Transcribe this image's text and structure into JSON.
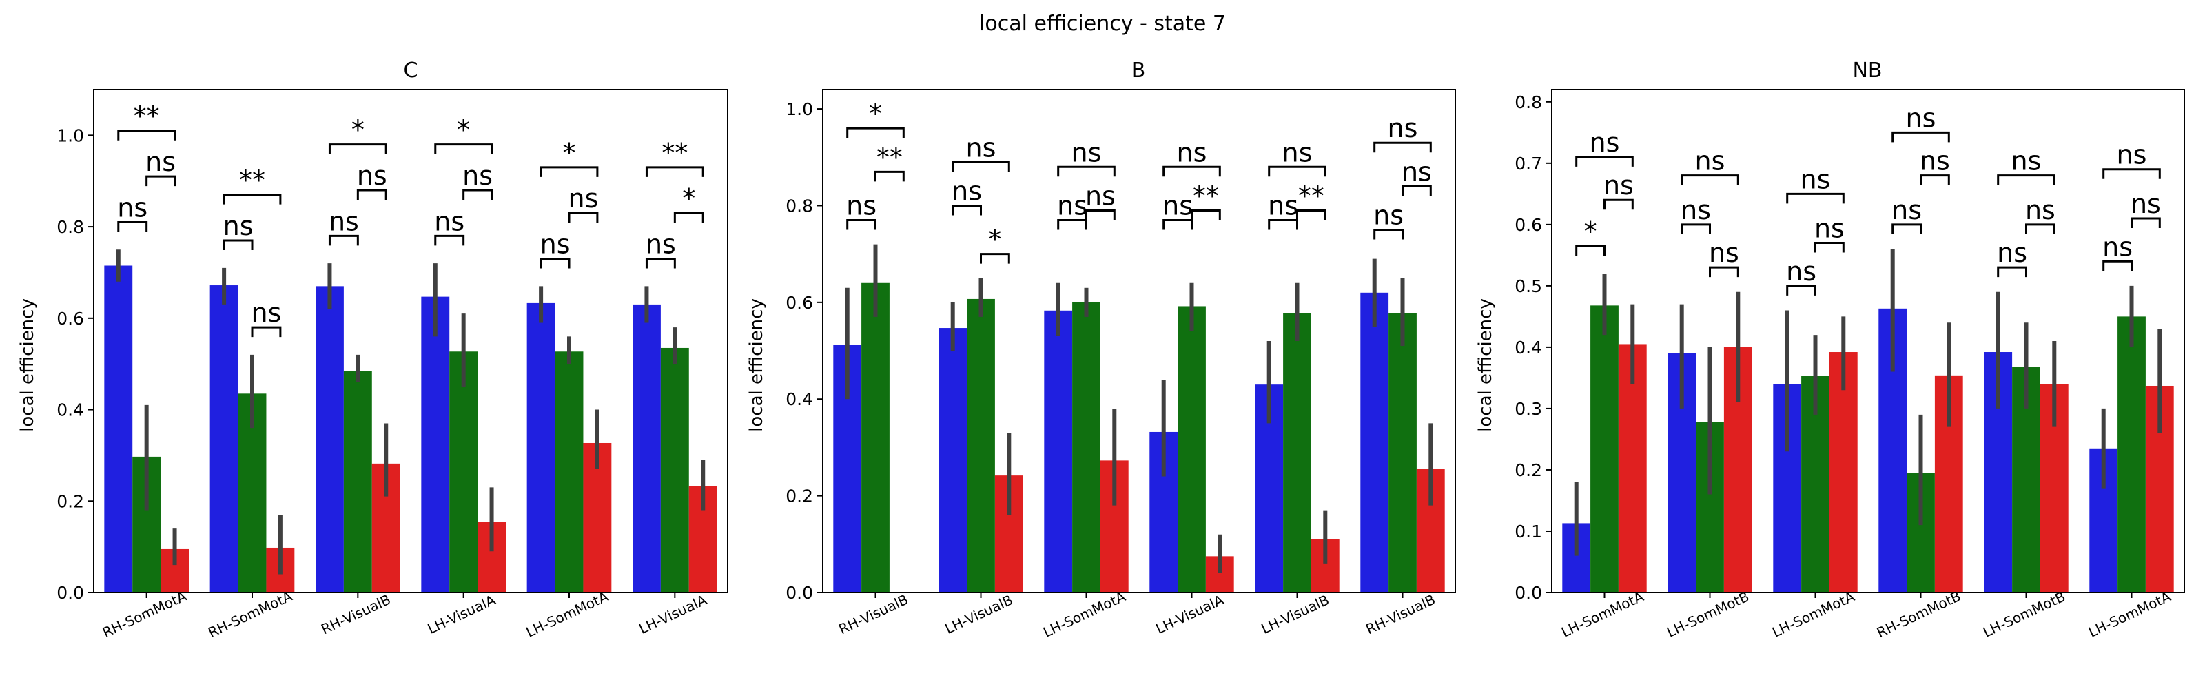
{
  "figure_title": "local efficiency - state 7",
  "colors": {
    "blue": "#2020e0",
    "green": "#107010",
    "red": "#e02020",
    "errbar": "#404040"
  },
  "chart_data": [
    {
      "type": "bar",
      "title": "C",
      "xlabel": "",
      "ylabel": "local efficiency",
      "ylim": [
        0,
        1.1
      ],
      "yticks": [
        0.0,
        0.2,
        0.4,
        0.6,
        0.8,
        1.0
      ],
      "ytick_labels": [
        "0.0",
        "0.2",
        "0.4",
        "0.6",
        "0.8",
        "1.0"
      ],
      "categories": [
        "RH-SomMotA",
        "RH-SomMotA",
        "RH-VisualB",
        "LH-VisualA",
        "LH-SomMotA",
        "LH-VisualA"
      ],
      "series": [
        {
          "color": "#2020e0",
          "values": [
            0.715,
            0.672,
            0.67,
            0.647,
            0.633,
            0.63
          ],
          "ci": [
            [
              0.68,
              0.75
            ],
            [
              0.63,
              0.71
            ],
            [
              0.62,
              0.72
            ],
            [
              0.56,
              0.72
            ],
            [
              0.59,
              0.67
            ],
            [
              0.59,
              0.67
            ]
          ]
        },
        {
          "color": "#107010",
          "values": [
            0.297,
            0.435,
            0.485,
            0.527,
            0.527,
            0.535
          ],
          "ci": [
            [
              0.18,
              0.41
            ],
            [
              0.36,
              0.52
            ],
            [
              0.46,
              0.52
            ],
            [
              0.45,
              0.61
            ],
            [
              0.5,
              0.56
            ],
            [
              0.5,
              0.58
            ]
          ]
        },
        {
          "color": "#e02020",
          "values": [
            0.095,
            0.098,
            0.282,
            0.155,
            0.327,
            0.233
          ],
          "ci": [
            [
              0.06,
              0.14
            ],
            [
              0.04,
              0.17
            ],
            [
              0.21,
              0.37
            ],
            [
              0.09,
              0.23
            ],
            [
              0.27,
              0.4
            ],
            [
              0.18,
              0.29
            ]
          ]
        }
      ],
      "annotations": [
        {
          "bar_pair": "blue-green",
          "label": [
            "ns",
            "ns",
            "ns",
            "ns",
            "ns",
            "ns"
          ],
          "level": [
            0.81,
            0.77,
            0.78,
            0.78,
            0.73,
            0.73
          ]
        },
        {
          "bar_pair": "green-red",
          "label": [
            "ns",
            "ns",
            "ns",
            "ns",
            "ns",
            "*"
          ],
          "level": [
            0.91,
            0.58,
            0.88,
            0.88,
            0.83,
            0.83
          ]
        },
        {
          "bar_pair": "blue-red",
          "label": [
            "**",
            "**",
            "*",
            "*",
            "*",
            "**"
          ],
          "level": [
            1.01,
            0.87,
            0.98,
            0.98,
            0.93,
            0.93
          ]
        }
      ]
    },
    {
      "type": "bar",
      "title": "B",
      "xlabel": "",
      "ylabel": "local efficiency",
      "ylim": [
        0,
        1.04
      ],
      "yticks": [
        0.0,
        0.2,
        0.4,
        0.6,
        0.8,
        1.0
      ],
      "ytick_labels": [
        "0.0",
        "0.2",
        "0.4",
        "0.6",
        "0.8",
        "1.0"
      ],
      "categories": [
        "RH-VisualB",
        "LH-VisualB",
        "LH-SomMotA",
        "LH-VisualA",
        "LH-VisualB",
        "RH-VisualB"
      ],
      "series": [
        {
          "color": "#2020e0",
          "values": [
            0.512,
            0.547,
            0.583,
            0.332,
            0.43,
            0.62
          ],
          "ci": [
            [
              0.4,
              0.63
            ],
            [
              0.5,
              0.6
            ],
            [
              0.53,
              0.64
            ],
            [
              0.24,
              0.44
            ],
            [
              0.35,
              0.52
            ],
            [
              0.55,
              0.69
            ]
          ]
        },
        {
          "color": "#107010",
          "values": [
            0.64,
            0.607,
            0.6,
            0.592,
            0.578,
            0.577
          ],
          "ci": [
            [
              0.57,
              0.72
            ],
            [
              0.57,
              0.65
            ],
            [
              0.57,
              0.63
            ],
            [
              0.54,
              0.64
            ],
            [
              0.52,
              0.64
            ],
            [
              0.51,
              0.65
            ]
          ]
        },
        {
          "color": "#e02020",
          "values": [
            0.0,
            0.242,
            0.273,
            0.075,
            0.11,
            0.255
          ],
          "ci": [
            [
              0.0,
              0.0
            ],
            [
              0.16,
              0.33
            ],
            [
              0.18,
              0.38
            ],
            [
              0.04,
              0.12
            ],
            [
              0.06,
              0.17
            ],
            [
              0.18,
              0.35
            ]
          ]
        }
      ],
      "annotations": [
        {
          "bar_pair": "blue-green",
          "label": [
            "ns",
            "ns",
            "ns",
            "ns",
            "ns",
            "ns"
          ],
          "level": [
            0.77,
            0.8,
            0.77,
            0.77,
            0.77,
            0.75
          ]
        },
        {
          "bar_pair": "green-red",
          "label": [
            "**",
            "*",
            "ns",
            "**",
            "**",
            "ns"
          ],
          "level": [
            0.87,
            0.7,
            0.79,
            0.79,
            0.79,
            0.84
          ]
        },
        {
          "bar_pair": "blue-red",
          "label": [
            "*",
            "ns",
            "ns",
            "ns",
            "ns",
            "ns"
          ],
          "level": [
            0.96,
            0.89,
            0.88,
            0.88,
            0.88,
            0.93
          ]
        }
      ]
    },
    {
      "type": "bar",
      "title": "NB",
      "xlabel": "",
      "ylabel": "local efficiency",
      "ylim": [
        0,
        0.82
      ],
      "yticks": [
        0.0,
        0.1,
        0.2,
        0.3,
        0.4,
        0.5,
        0.6,
        0.7,
        0.8
      ],
      "ytick_labels": [
        "0.0",
        "0.1",
        "0.2",
        "0.3",
        "0.4",
        "0.5",
        "0.6",
        "0.7",
        "0.8"
      ],
      "categories": [
        "LH-SomMotA",
        "LH-SomMotB",
        "LH-SomMotA",
        "RH-SomMotB",
        "LH-SomMotB",
        "LH-SomMotA"
      ],
      "series": [
        {
          "color": "#2020e0",
          "values": [
            0.113,
            0.39,
            0.34,
            0.463,
            0.392,
            0.235
          ],
          "ci": [
            [
              0.06,
              0.18
            ],
            [
              0.3,
              0.47
            ],
            [
              0.23,
              0.46
            ],
            [
              0.36,
              0.56
            ],
            [
              0.3,
              0.49
            ],
            [
              0.17,
              0.3
            ]
          ]
        },
        {
          "color": "#107010",
          "values": [
            0.468,
            0.278,
            0.353,
            0.195,
            0.368,
            0.45
          ],
          "ci": [
            [
              0.42,
              0.52
            ],
            [
              0.16,
              0.4
            ],
            [
              0.29,
              0.42
            ],
            [
              0.11,
              0.29
            ],
            [
              0.3,
              0.44
            ],
            [
              0.4,
              0.5
            ]
          ]
        },
        {
          "color": "#e02020",
          "values": [
            0.405,
            0.4,
            0.392,
            0.354,
            0.34,
            0.337
          ],
          "ci": [
            [
              0.34,
              0.47
            ],
            [
              0.31,
              0.49
            ],
            [
              0.33,
              0.45
            ],
            [
              0.27,
              0.44
            ],
            [
              0.27,
              0.41
            ],
            [
              0.26,
              0.43
            ]
          ]
        }
      ],
      "annotations": [
        {
          "bar_pair": "blue-green",
          "label": [
            "*",
            "ns",
            "ns",
            "ns",
            "ns",
            "ns"
          ],
          "level": [
            0.565,
            0.6,
            0.5,
            0.6,
            0.53,
            0.54
          ]
        },
        {
          "bar_pair": "green-red",
          "label": [
            "ns",
            "ns",
            "ns",
            "ns",
            "ns",
            "ns"
          ],
          "level": [
            0.64,
            0.53,
            0.57,
            0.68,
            0.6,
            0.61
          ]
        },
        {
          "bar_pair": "blue-red",
          "label": [
            "ns",
            "ns",
            "ns",
            "ns",
            "ns",
            "ns"
          ],
          "level": [
            0.71,
            0.68,
            0.65,
            0.75,
            0.68,
            0.69
          ]
        }
      ]
    }
  ]
}
